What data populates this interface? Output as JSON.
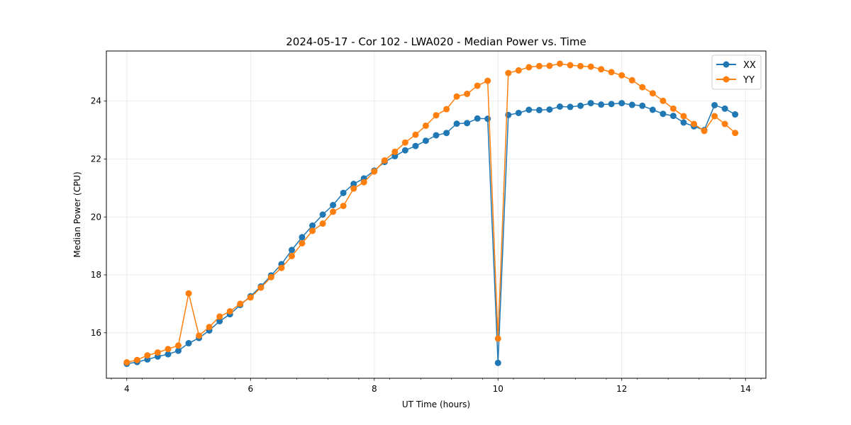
{
  "chart_data": {
    "type": "line",
    "title": "2024-05-17 - Cor 102 - LWA020 - Median Power vs. Time",
    "xlabel": "UT Time (hours)",
    "ylabel": "Median Power (CPU)",
    "xlim": [
      3.67,
      14.33
    ],
    "ylim": [
      14.43,
      25.73
    ],
    "xticks": [
      4,
      6,
      8,
      10,
      12,
      14
    ],
    "yticks": [
      16,
      18,
      20,
      22,
      24
    ],
    "xtick_labels": [
      "4",
      "6",
      "8",
      "10",
      "12",
      "14"
    ],
    "ytick_labels": [
      "16",
      "18",
      "20",
      "22",
      "24"
    ],
    "grid": true,
    "legend_position": "top-right",
    "x": [
      4.0,
      4.167,
      4.333,
      4.5,
      4.667,
      4.833,
      5.0,
      5.167,
      5.333,
      5.5,
      5.667,
      5.833,
      6.0,
      6.167,
      6.333,
      6.5,
      6.667,
      6.833,
      7.0,
      7.167,
      7.333,
      7.5,
      7.667,
      7.833,
      8.0,
      8.167,
      8.333,
      8.5,
      8.667,
      8.833,
      9.0,
      9.167,
      9.333,
      9.5,
      9.667,
      9.833,
      10.0,
      10.167,
      10.333,
      10.5,
      10.667,
      10.833,
      11.0,
      11.167,
      11.333,
      11.5,
      11.667,
      11.833,
      12.0,
      12.167,
      12.333,
      12.5,
      12.667,
      12.833,
      13.0,
      13.167,
      13.333,
      13.5,
      13.667,
      13.833
    ],
    "series": [
      {
        "name": "XX",
        "color": "#1f77b4",
        "values": [
          14.93,
          14.99,
          15.08,
          15.18,
          15.26,
          15.38,
          15.64,
          15.82,
          16.08,
          16.4,
          16.64,
          16.96,
          17.26,
          17.6,
          17.98,
          18.37,
          18.86,
          19.3,
          19.7,
          20.08,
          20.41,
          20.83,
          21.14,
          21.33,
          21.6,
          21.9,
          22.1,
          22.3,
          22.45,
          22.63,
          22.82,
          22.9,
          23.22,
          23.24,
          23.4,
          23.39,
          14.96,
          23.52,
          23.59,
          23.7,
          23.69,
          23.71,
          23.81,
          23.8,
          23.84,
          23.93,
          23.88,
          23.9,
          23.93,
          23.87,
          23.84,
          23.7,
          23.56,
          23.49,
          23.26,
          23.13,
          23.0,
          23.86,
          23.74,
          23.54
        ]
      },
      {
        "name": "YY",
        "color": "#ff7f0e",
        "values": [
          14.98,
          15.06,
          15.22,
          15.32,
          15.44,
          15.56,
          17.36,
          15.9,
          16.2,
          16.56,
          16.74,
          17.0,
          17.22,
          17.56,
          17.92,
          18.24,
          18.65,
          19.09,
          19.52,
          19.77,
          20.18,
          20.38,
          20.98,
          21.2,
          21.57,
          21.95,
          22.25,
          22.57,
          22.84,
          23.15,
          23.51,
          23.72,
          24.16,
          24.25,
          24.53,
          24.7,
          15.8,
          24.97,
          25.06,
          25.17,
          25.21,
          25.22,
          25.29,
          25.24,
          25.21,
          25.19,
          25.1,
          25.0,
          24.89,
          24.72,
          24.48,
          24.27,
          24.01,
          23.74,
          23.48,
          23.21,
          22.97,
          23.48,
          23.21,
          22.9
        ]
      }
    ]
  }
}
